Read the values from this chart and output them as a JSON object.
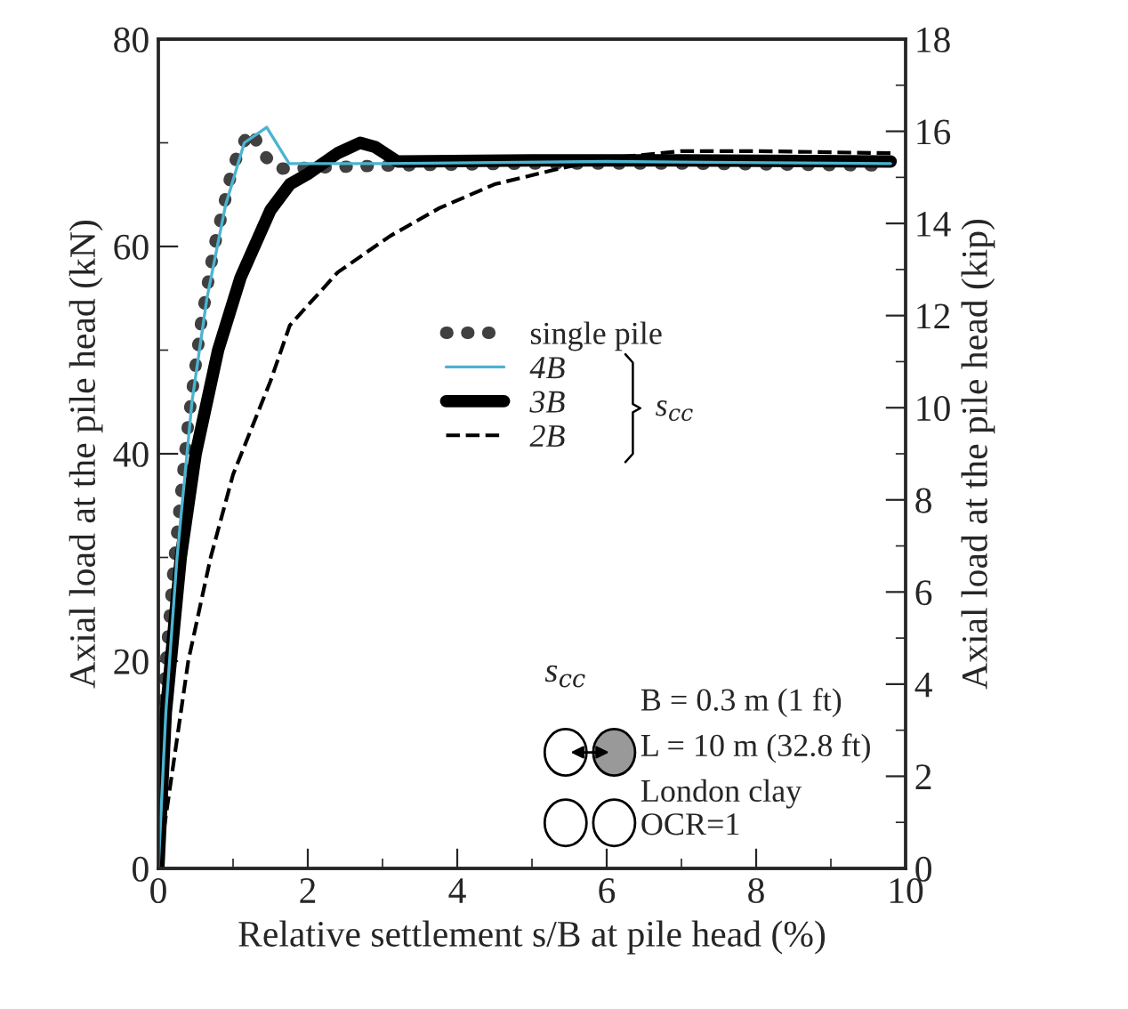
{
  "chart_data": {
    "type": "line",
    "xlabel": "Relative settlement s/B at pile head (%)",
    "ylabel": "Axial load at the pile head (kN)",
    "y2label": "Axial load at the pile head (kip)",
    "xlim": [
      0,
      10
    ],
    "xticks": [
      0,
      2,
      4,
      6,
      8,
      10
    ],
    "ylim": [
      0,
      80
    ],
    "yticks": [
      0,
      20,
      40,
      60,
      80
    ],
    "y2lim": [
      0,
      18
    ],
    "y2ticks": [
      0,
      2,
      4,
      6,
      8,
      10,
      12,
      14,
      16,
      18
    ],
    "grid": false,
    "legend": "center",
    "series": [
      {
        "name": "single pile",
        "color": "#404040",
        "line_style": "dotted",
        "x": [
          0,
          0.07,
          0.1,
          0.21,
          0.4,
          0.57,
          0.74,
          0.98,
          1.1,
          1.25,
          1.4,
          1.6,
          3,
          5,
          7,
          9.8
        ],
        "values": [
          0,
          15,
          19.7,
          29.4,
          43,
          52.5,
          59.7,
          67.2,
          69.7,
          71.1,
          68.9,
          67.5,
          67.8,
          68,
          68,
          67.8
        ]
      },
      {
        "name": "4B",
        "color": "#4bb4d0",
        "line_style": "solid",
        "x": [
          0,
          0.1,
          0.25,
          0.45,
          0.65,
          0.9,
          1.15,
          1.45,
          1.75,
          3,
          6,
          9.8
        ],
        "values": [
          0,
          15,
          30,
          45,
          55,
          64,
          70,
          71.5,
          68,
          68,
          68.2,
          68
        ]
      },
      {
        "name": "3B",
        "color": "#000000",
        "line_style": "solid",
        "x": [
          0,
          0.1,
          0.3,
          0.5,
          0.8,
          1.1,
          1.5,
          1.76,
          2,
          2.4,
          2.7,
          2.9,
          3.2,
          5,
          7,
          9.8
        ],
        "values": [
          0,
          15,
          30,
          40,
          50,
          57,
          63.5,
          66,
          67,
          69,
          70,
          69.6,
          68.2,
          68.3,
          68.3,
          68.2
        ]
      },
      {
        "name": "2B",
        "color": "#000000",
        "line_style": "dashed",
        "x": [
          0,
          0.2,
          0.4,
          0.7,
          1.0,
          1.5,
          1.76,
          2.4,
          3.1,
          3.76,
          4.5,
          5.3,
          6,
          7,
          8,
          9.8
        ],
        "values": [
          0,
          10,
          20,
          30,
          38,
          47,
          52.4,
          57.5,
          61,
          63.7,
          66,
          67.4,
          68.5,
          69.2,
          69.2,
          69
        ]
      }
    ],
    "annotations": [
      "s$_{cc}$",
      "s$_{cc}$",
      "B = 0.3 m (1 ft)",
      "L = 10 m (32.8 ft)",
      "London clay",
      "OCR=1"
    ]
  }
}
